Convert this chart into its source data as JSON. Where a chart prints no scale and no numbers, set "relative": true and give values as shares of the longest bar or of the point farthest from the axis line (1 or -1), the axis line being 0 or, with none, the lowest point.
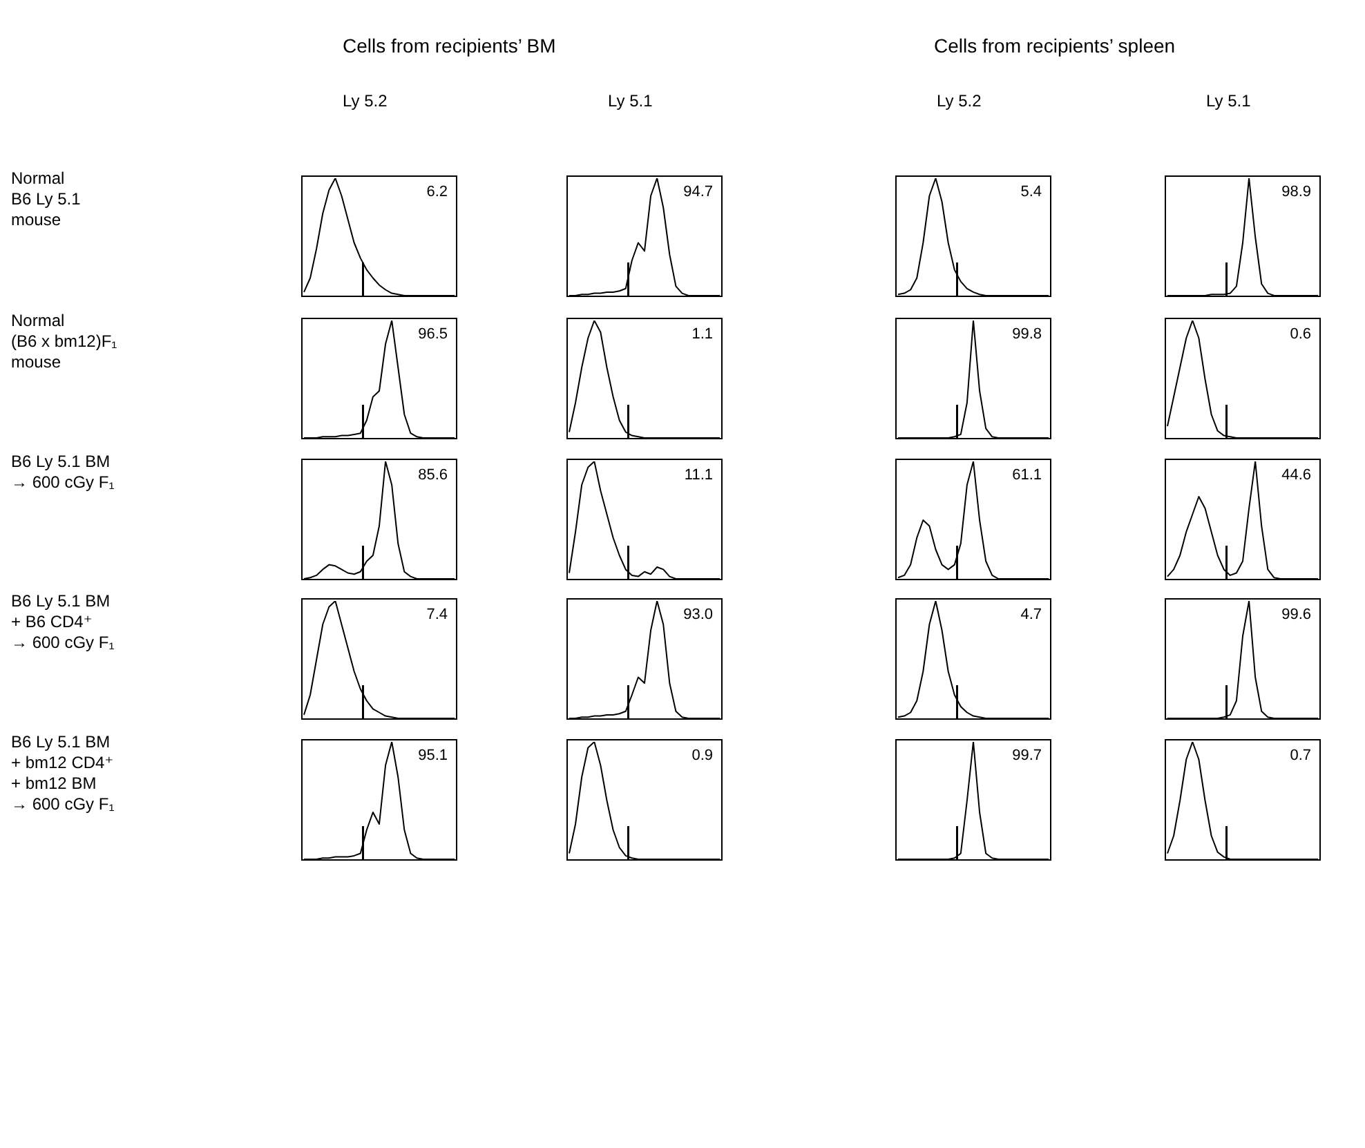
{
  "chart_data": [
    {
      "type": "other",
      "annotations": [
        "Cells from recipients’ BM",
        "Cells from recipients’ spleen",
        "Ly 5.2",
        "Ly 5.1",
        "Ly 5.2",
        "Ly 5.1",
        "Normal\nB6 Ly 5.1\nmouse",
        "Normal\n(B6 x bm12)F₁\nmouse",
        "B6 Ly 5.1 BM\n→ 600 cGy F₁",
        "B6 Ly 5.1 BM\n+ B6 CD4⁺\n→ 600 cGy F₁",
        "B6 Ly 5.1 BM\n+ bm12 CD4⁺\n+ bm12 BM\n→ 600 cGy F₁"
      ]
    },
    {
      "type": "line",
      "relative": true,
      "annotations": [
        "6.2"
      ],
      "categories": [
        null,
        null,
        null,
        null,
        null,
        null,
        null,
        null,
        null,
        null,
        null,
        null,
        null,
        null,
        null,
        null,
        null,
        null,
        null,
        null,
        null,
        null,
        null,
        null,
        null
      ],
      "series": [
        {
          "color": "#000000",
          "values": [
            0.03,
            0.15,
            0.4,
            0.7,
            0.9,
            1,
            0.85,
            0.65,
            0.45,
            0.32,
            0.22,
            0.15,
            0.09,
            0.05,
            0.02,
            0.01,
            0,
            0,
            0,
            0,
            0,
            0,
            0,
            0,
            0
          ]
        }
      ]
    },
    {
      "type": "line",
      "relative": true,
      "annotations": [
        "94.7"
      ],
      "categories": [
        null,
        null,
        null,
        null,
        null,
        null,
        null,
        null,
        null,
        null,
        null,
        null,
        null,
        null,
        null,
        null,
        null,
        null,
        null,
        null,
        null,
        null,
        null,
        null,
        null
      ],
      "series": [
        {
          "color": "#000000",
          "values": [
            0,
            0,
            0.01,
            0.01,
            0.02,
            0.02,
            0.03,
            0.03,
            0.04,
            0.06,
            0.3,
            0.45,
            0.38,
            0.85,
            1,
            0.75,
            0.35,
            0.08,
            0.02,
            0,
            0,
            0,
            0,
            0,
            0
          ]
        }
      ]
    },
    {
      "type": "line",
      "relative": true,
      "annotations": [
        "5.4"
      ],
      "categories": [
        null,
        null,
        null,
        null,
        null,
        null,
        null,
        null,
        null,
        null,
        null,
        null,
        null,
        null,
        null,
        null,
        null,
        null,
        null,
        null,
        null,
        null,
        null,
        null,
        null
      ],
      "series": [
        {
          "color": "#000000",
          "values": [
            0.01,
            0.02,
            0.05,
            0.15,
            0.45,
            0.85,
            1,
            0.8,
            0.45,
            0.22,
            0.12,
            0.06,
            0.03,
            0.01,
            0,
            0,
            0,
            0,
            0,
            0,
            0,
            0,
            0,
            0,
            0
          ]
        }
      ]
    },
    {
      "type": "line",
      "relative": true,
      "annotations": [
        "98.9"
      ],
      "categories": [
        null,
        null,
        null,
        null,
        null,
        null,
        null,
        null,
        null,
        null,
        null,
        null,
        null,
        null,
        null,
        null,
        null,
        null,
        null,
        null,
        null,
        null,
        null,
        null,
        null
      ],
      "series": [
        {
          "color": "#000000",
          "values": [
            0,
            0,
            0,
            0,
            0,
            0,
            0,
            0.01,
            0.01,
            0.01,
            0.02,
            0.08,
            0.45,
            1,
            0.5,
            0.1,
            0.02,
            0,
            0,
            0,
            0,
            0,
            0,
            0,
            0
          ]
        }
      ]
    },
    {
      "type": "line",
      "relative": true,
      "annotations": [
        "96.5"
      ],
      "categories": [
        null,
        null,
        null,
        null,
        null,
        null,
        null,
        null,
        null,
        null,
        null,
        null,
        null,
        null,
        null,
        null,
        null,
        null,
        null,
        null,
        null,
        null,
        null,
        null,
        null
      ],
      "series": [
        {
          "color": "#000000",
          "values": [
            0,
            0,
            0,
            0.01,
            0.01,
            0.01,
            0.02,
            0.02,
            0.03,
            0.04,
            0.15,
            0.35,
            0.4,
            0.8,
            1,
            0.6,
            0.2,
            0.04,
            0.01,
            0,
            0,
            0,
            0,
            0,
            0
          ]
        }
      ]
    },
    {
      "type": "line",
      "relative": true,
      "annotations": [
        "1.1"
      ],
      "categories": [
        null,
        null,
        null,
        null,
        null,
        null,
        null,
        null,
        null,
        null,
        null,
        null,
        null,
        null,
        null,
        null,
        null,
        null,
        null,
        null,
        null,
        null,
        null,
        null,
        null
      ],
      "series": [
        {
          "color": "#000000",
          "values": [
            0.05,
            0.3,
            0.6,
            0.85,
            1,
            0.9,
            0.6,
            0.35,
            0.15,
            0.05,
            0.02,
            0.01,
            0,
            0,
            0,
            0,
            0,
            0,
            0,
            0,
            0,
            0,
            0,
            0,
            0
          ]
        }
      ]
    },
    {
      "type": "line",
      "relative": true,
      "annotations": [
        "99.8"
      ],
      "categories": [
        null,
        null,
        null,
        null,
        null,
        null,
        null,
        null,
        null,
        null,
        null,
        null,
        null,
        null,
        null,
        null,
        null,
        null,
        null,
        null,
        null,
        null,
        null,
        null,
        null
      ],
      "series": [
        {
          "color": "#000000",
          "values": [
            0,
            0,
            0,
            0,
            0,
            0,
            0,
            0,
            0,
            0.01,
            0.03,
            0.3,
            1,
            0.4,
            0.08,
            0.01,
            0,
            0,
            0,
            0,
            0,
            0,
            0,
            0,
            0
          ]
        }
      ]
    },
    {
      "type": "line",
      "relative": true,
      "annotations": [
        "0.6"
      ],
      "categories": [
        null,
        null,
        null,
        null,
        null,
        null,
        null,
        null,
        null,
        null,
        null,
        null,
        null,
        null,
        null,
        null,
        null,
        null,
        null,
        null,
        null,
        null,
        null,
        null,
        null
      ],
      "series": [
        {
          "color": "#000000",
          "values": [
            0.1,
            0.35,
            0.6,
            0.85,
            1,
            0.85,
            0.5,
            0.2,
            0.06,
            0.02,
            0.01,
            0,
            0,
            0,
            0,
            0,
            0,
            0,
            0,
            0,
            0,
            0,
            0,
            0,
            0
          ]
        }
      ]
    },
    {
      "type": "line",
      "relative": true,
      "annotations": [
        "85.6"
      ],
      "categories": [
        null,
        null,
        null,
        null,
        null,
        null,
        null,
        null,
        null,
        null,
        null,
        null,
        null,
        null,
        null,
        null,
        null,
        null,
        null,
        null,
        null,
        null,
        null,
        null,
        null
      ],
      "series": [
        {
          "color": "#000000",
          "values": [
            0,
            0.01,
            0.03,
            0.08,
            0.12,
            0.11,
            0.08,
            0.05,
            0.04,
            0.06,
            0.15,
            0.2,
            0.45,
            1,
            0.8,
            0.3,
            0.06,
            0.02,
            0,
            0,
            0,
            0,
            0,
            0,
            0
          ]
        }
      ]
    },
    {
      "type": "line",
      "relative": true,
      "annotations": [
        "11.1"
      ],
      "categories": [
        null,
        null,
        null,
        null,
        null,
        null,
        null,
        null,
        null,
        null,
        null,
        null,
        null,
        null,
        null,
        null,
        null,
        null,
        null,
        null,
        null,
        null,
        null,
        null,
        null
      ],
      "series": [
        {
          "color": "#000000",
          "values": [
            0.05,
            0.4,
            0.8,
            0.95,
            1,
            0.75,
            0.55,
            0.35,
            0.2,
            0.08,
            0.03,
            0.02,
            0.06,
            0.04,
            0.1,
            0.08,
            0.02,
            0,
            0,
            0,
            0,
            0,
            0,
            0,
            0
          ]
        }
      ]
    },
    {
      "type": "line",
      "relative": true,
      "annotations": [
        "61.1"
      ],
      "categories": [
        null,
        null,
        null,
        null,
        null,
        null,
        null,
        null,
        null,
        null,
        null,
        null,
        null,
        null,
        null,
        null,
        null,
        null,
        null,
        null,
        null,
        null,
        null,
        null,
        null
      ],
      "series": [
        {
          "color": "#000000",
          "values": [
            0.01,
            0.03,
            0.12,
            0.35,
            0.5,
            0.45,
            0.25,
            0.12,
            0.08,
            0.12,
            0.3,
            0.8,
            1,
            0.5,
            0.15,
            0.03,
            0,
            0,
            0,
            0,
            0,
            0,
            0,
            0,
            0
          ]
        }
      ]
    },
    {
      "type": "line",
      "relative": true,
      "annotations": [
        "44.6"
      ],
      "categories": [
        null,
        null,
        null,
        null,
        null,
        null,
        null,
        null,
        null,
        null,
        null,
        null,
        null,
        null,
        null,
        null,
        null,
        null,
        null,
        null,
        null,
        null,
        null,
        null,
        null
      ],
      "series": [
        {
          "color": "#000000",
          "values": [
            0.02,
            0.08,
            0.2,
            0.4,
            0.55,
            0.7,
            0.6,
            0.4,
            0.2,
            0.08,
            0.03,
            0.05,
            0.15,
            0.6,
            1,
            0.45,
            0.08,
            0.01,
            0,
            0,
            0,
            0,
            0,
            0,
            0
          ]
        }
      ]
    },
    {
      "type": "line",
      "relative": true,
      "annotations": [
        "7.4"
      ],
      "categories": [
        null,
        null,
        null,
        null,
        null,
        null,
        null,
        null,
        null,
        null,
        null,
        null,
        null,
        null,
        null,
        null,
        null,
        null,
        null,
        null,
        null,
        null,
        null,
        null,
        null
      ],
      "series": [
        {
          "color": "#000000",
          "values": [
            0.03,
            0.2,
            0.5,
            0.8,
            0.95,
            1,
            0.8,
            0.6,
            0.4,
            0.25,
            0.15,
            0.08,
            0.05,
            0.02,
            0.01,
            0,
            0,
            0,
            0,
            0,
            0,
            0,
            0,
            0,
            0
          ]
        }
      ]
    },
    {
      "type": "line",
      "relative": true,
      "annotations": [
        "93.0"
      ],
      "categories": [
        null,
        null,
        null,
        null,
        null,
        null,
        null,
        null,
        null,
        null,
        null,
        null,
        null,
        null,
        null,
        null,
        null,
        null,
        null,
        null,
        null,
        null,
        null,
        null,
        null
      ],
      "series": [
        {
          "color": "#000000",
          "values": [
            0,
            0,
            0.01,
            0.01,
            0.02,
            0.02,
            0.03,
            0.03,
            0.04,
            0.06,
            0.2,
            0.35,
            0.3,
            0.75,
            1,
            0.8,
            0.3,
            0.06,
            0.01,
            0,
            0,
            0,
            0,
            0,
            0
          ]
        }
      ]
    },
    {
      "type": "line",
      "relative": true,
      "annotations": [
        "4.7"
      ],
      "categories": [
        null,
        null,
        null,
        null,
        null,
        null,
        null,
        null,
        null,
        null,
        null,
        null,
        null,
        null,
        null,
        null,
        null,
        null,
        null,
        null,
        null,
        null,
        null,
        null,
        null
      ],
      "series": [
        {
          "color": "#000000",
          "values": [
            0.01,
            0.02,
            0.05,
            0.15,
            0.4,
            0.8,
            1,
            0.75,
            0.4,
            0.2,
            0.1,
            0.05,
            0.02,
            0.01,
            0,
            0,
            0,
            0,
            0,
            0,
            0,
            0,
            0,
            0,
            0
          ]
        }
      ]
    },
    {
      "type": "line",
      "relative": true,
      "annotations": [
        "99.6"
      ],
      "categories": [
        null,
        null,
        null,
        null,
        null,
        null,
        null,
        null,
        null,
        null,
        null,
        null,
        null,
        null,
        null,
        null,
        null,
        null,
        null,
        null,
        null,
        null,
        null,
        null,
        null
      ],
      "series": [
        {
          "color": "#000000",
          "values": [
            0,
            0,
            0,
            0,
            0,
            0,
            0,
            0,
            0,
            0.01,
            0.03,
            0.15,
            0.7,
            1,
            0.35,
            0.06,
            0.01,
            0,
            0,
            0,
            0,
            0,
            0,
            0,
            0
          ]
        }
      ]
    },
    {
      "type": "line",
      "relative": true,
      "annotations": [
        "95.1"
      ],
      "categories": [
        null,
        null,
        null,
        null,
        null,
        null,
        null,
        null,
        null,
        null,
        null,
        null,
        null,
        null,
        null,
        null,
        null,
        null,
        null,
        null,
        null,
        null,
        null,
        null,
        null
      ],
      "series": [
        {
          "color": "#000000",
          "values": [
            0,
            0,
            0,
            0.01,
            0.01,
            0.02,
            0.02,
            0.02,
            0.03,
            0.05,
            0.25,
            0.4,
            0.3,
            0.8,
            1,
            0.7,
            0.25,
            0.05,
            0.01,
            0,
            0,
            0,
            0,
            0,
            0
          ]
        }
      ]
    },
    {
      "type": "line",
      "relative": true,
      "annotations": [
        "0.9"
      ],
      "categories": [
        null,
        null,
        null,
        null,
        null,
        null,
        null,
        null,
        null,
        null,
        null,
        null,
        null,
        null,
        null,
        null,
        null,
        null,
        null,
        null,
        null,
        null,
        null,
        null,
        null
      ],
      "series": [
        {
          "color": "#000000",
          "values": [
            0.05,
            0.3,
            0.7,
            0.95,
            1,
            0.8,
            0.5,
            0.25,
            0.1,
            0.03,
            0.01,
            0,
            0,
            0,
            0,
            0,
            0,
            0,
            0,
            0,
            0,
            0,
            0,
            0,
            0
          ]
        }
      ]
    },
    {
      "type": "line",
      "relative": true,
      "annotations": [
        "99.7"
      ],
      "categories": [
        null,
        null,
        null,
        null,
        null,
        null,
        null,
        null,
        null,
        null,
        null,
        null,
        null,
        null,
        null,
        null,
        null,
        null,
        null,
        null,
        null,
        null,
        null,
        null,
        null
      ],
      "series": [
        {
          "color": "#000000",
          "values": [
            0,
            0,
            0,
            0,
            0,
            0,
            0,
            0,
            0,
            0.01,
            0.05,
            0.5,
            1,
            0.4,
            0.05,
            0.01,
            0,
            0,
            0,
            0,
            0,
            0,
            0,
            0,
            0
          ]
        }
      ]
    },
    {
      "type": "line",
      "relative": true,
      "annotations": [
        "0.7"
      ],
      "categories": [
        null,
        null,
        null,
        null,
        null,
        null,
        null,
        null,
        null,
        null,
        null,
        null,
        null,
        null,
        null,
        null,
        null,
        null,
        null,
        null,
        null,
        null,
        null,
        null,
        null
      ],
      "series": [
        {
          "color": "#000000",
          "values": [
            0.05,
            0.2,
            0.5,
            0.85,
            1,
            0.85,
            0.5,
            0.2,
            0.06,
            0.02,
            0,
            0,
            0,
            0,
            0,
            0,
            0,
            0,
            0,
            0,
            0,
            0,
            0,
            0,
            0
          ]
        }
      ]
    }
  ]
}
